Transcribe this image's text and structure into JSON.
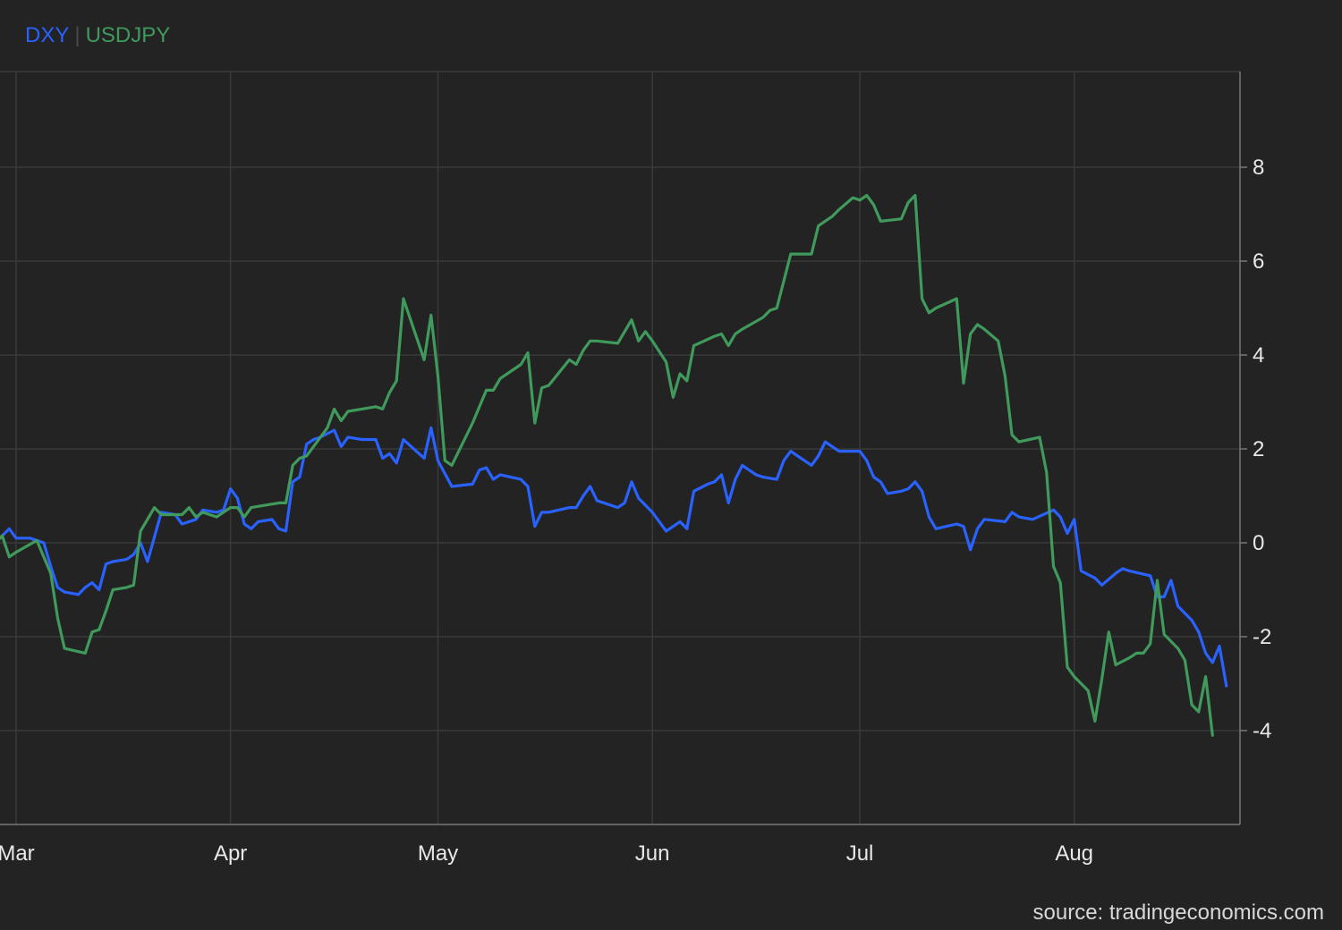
{
  "legend": {
    "items": [
      {
        "label": "DXY",
        "color": "#2962ff"
      },
      {
        "label": "USDJPY",
        "color": "#3f9a5c"
      }
    ]
  },
  "source": "source: tradingeconomics.com",
  "chart_data": {
    "type": "line",
    "title": "",
    "xlabel": "",
    "ylabel": "",
    "y_axis_position": "right",
    "ylim": [
      -6,
      10
    ],
    "yticks": [
      8,
      6,
      4,
      2,
      0,
      -2,
      -4
    ],
    "xlim": [
      0,
      177
    ],
    "xticks": [
      {
        "label": "Mar",
        "x": 3
      },
      {
        "label": "Apr",
        "x": 34
      },
      {
        "label": "May",
        "x": 64
      },
      {
        "label": "Jun",
        "x": 95
      },
      {
        "label": "Jul",
        "x": 125
      },
      {
        "label": "Aug",
        "x": 156
      }
    ],
    "grid": true,
    "legend_placement": "top-left",
    "series": [
      {
        "name": "DXY",
        "color": "#2962ff",
        "points": [
          [
            0,
            0.0
          ],
          [
            2,
            0.3
          ],
          [
            3,
            0.1
          ],
          [
            5,
            0.1
          ],
          [
            7,
            0.0
          ],
          [
            8,
            -0.5
          ],
          [
            9,
            -0.95
          ],
          [
            10,
            -1.05
          ],
          [
            12,
            -1.1
          ],
          [
            13,
            -0.95
          ],
          [
            14,
            -0.85
          ],
          [
            15,
            -1.0
          ],
          [
            16,
            -0.45
          ],
          [
            17,
            -0.4
          ],
          [
            19,
            -0.35
          ],
          [
            20,
            -0.25
          ],
          [
            21,
            0.0
          ],
          [
            22,
            -0.4
          ],
          [
            24,
            0.65
          ],
          [
            26,
            0.6
          ],
          [
            27,
            0.4
          ],
          [
            29,
            0.5
          ],
          [
            30,
            0.7
          ],
          [
            32,
            0.65
          ],
          [
            33,
            0.7
          ],
          [
            34,
            1.15
          ],
          [
            35,
            0.95
          ],
          [
            36,
            0.4
          ],
          [
            37,
            0.3
          ],
          [
            38,
            0.45
          ],
          [
            40,
            0.5
          ],
          [
            41,
            0.3
          ],
          [
            42,
            0.25
          ],
          [
            43,
            1.3
          ],
          [
            44,
            1.4
          ],
          [
            45,
            2.1
          ],
          [
            46,
            2.2
          ],
          [
            47,
            2.25
          ],
          [
            49,
            2.4
          ],
          [
            50,
            2.05
          ],
          [
            51,
            2.25
          ],
          [
            53,
            2.2
          ],
          [
            55,
            2.2
          ],
          [
            56,
            1.8
          ],
          [
            57,
            1.9
          ],
          [
            58,
            1.7
          ],
          [
            59,
            2.2
          ],
          [
            62,
            1.8
          ],
          [
            63,
            2.45
          ],
          [
            64,
            1.75
          ],
          [
            66,
            1.2
          ],
          [
            69,
            1.25
          ],
          [
            70,
            1.55
          ],
          [
            71,
            1.6
          ],
          [
            72,
            1.35
          ],
          [
            73,
            1.45
          ],
          [
            76,
            1.35
          ],
          [
            77,
            1.2
          ],
          [
            78,
            0.35
          ],
          [
            79,
            0.65
          ],
          [
            80,
            0.65
          ],
          [
            83,
            0.75
          ],
          [
            84,
            0.75
          ],
          [
            85,
            1.0
          ],
          [
            86,
            1.2
          ],
          [
            87,
            0.9
          ],
          [
            90,
            0.75
          ],
          [
            91,
            0.85
          ],
          [
            92,
            1.3
          ],
          [
            93,
            0.95
          ],
          [
            95,
            0.65
          ],
          [
            97,
            0.25
          ],
          [
            99,
            0.45
          ],
          [
            100,
            0.3
          ],
          [
            101,
            1.1
          ],
          [
            103,
            1.25
          ],
          [
            104,
            1.3
          ],
          [
            105,
            1.45
          ],
          [
            106,
            0.85
          ],
          [
            107,
            1.35
          ],
          [
            108,
            1.65
          ],
          [
            110,
            1.45
          ],
          [
            111,
            1.4
          ],
          [
            113,
            1.35
          ],
          [
            114,
            1.75
          ],
          [
            115,
            1.95
          ],
          [
            117,
            1.75
          ],
          [
            118,
            1.65
          ],
          [
            119,
            1.85
          ],
          [
            120,
            2.15
          ],
          [
            121,
            2.05
          ],
          [
            122,
            1.95
          ],
          [
            124,
            1.95
          ],
          [
            125,
            1.95
          ],
          [
            126,
            1.75
          ],
          [
            127,
            1.4
          ],
          [
            128,
            1.3
          ],
          [
            129,
            1.05
          ],
          [
            131,
            1.1
          ],
          [
            132,
            1.15
          ],
          [
            133,
            1.3
          ],
          [
            134,
            1.1
          ],
          [
            135,
            0.55
          ],
          [
            136,
            0.3
          ],
          [
            139,
            0.4
          ],
          [
            140,
            0.35
          ],
          [
            141,
            -0.15
          ],
          [
            142,
            0.3
          ],
          [
            143,
            0.5
          ],
          [
            146,
            0.45
          ],
          [
            147,
            0.65
          ],
          [
            148,
            0.55
          ],
          [
            150,
            0.5
          ],
          [
            153,
            0.7
          ],
          [
            154,
            0.55
          ],
          [
            155,
            0.2
          ],
          [
            156,
            0.5
          ],
          [
            157,
            -0.6
          ],
          [
            159,
            -0.75
          ],
          [
            160,
            -0.9
          ],
          [
            162,
            -0.65
          ],
          [
            163,
            -0.55
          ],
          [
            164,
            -0.6
          ],
          [
            167,
            -0.7
          ],
          [
            168,
            -1.15
          ],
          [
            169,
            -1.15
          ],
          [
            170,
            -0.8
          ],
          [
            171,
            -1.35
          ],
          [
            173,
            -1.65
          ],
          [
            174,
            -1.9
          ],
          [
            175,
            -2.35
          ],
          [
            176,
            -2.55
          ],
          [
            177,
            -2.2
          ],
          [
            178,
            -3.05
          ]
        ]
      },
      {
        "name": "USDJPY",
        "color": "#3f9a5c",
        "points": [
          [
            0,
            0.0
          ],
          [
            1,
            0.15
          ],
          [
            2,
            -0.3
          ],
          [
            3,
            -0.2
          ],
          [
            6,
            0.05
          ],
          [
            7,
            -0.3
          ],
          [
            8,
            -0.65
          ],
          [
            9,
            -1.6
          ],
          [
            10,
            -2.25
          ],
          [
            13,
            -2.35
          ],
          [
            14,
            -1.9
          ],
          [
            15,
            -1.85
          ],
          [
            16,
            -1.45
          ],
          [
            17,
            -1.0
          ],
          [
            19,
            -0.95
          ],
          [
            20,
            -0.9
          ],
          [
            21,
            0.25
          ],
          [
            23,
            0.75
          ],
          [
            24,
            0.6
          ],
          [
            27,
            0.6
          ],
          [
            28,
            0.75
          ],
          [
            29,
            0.55
          ],
          [
            30,
            0.65
          ],
          [
            31,
            0.6
          ],
          [
            32,
            0.55
          ],
          [
            34,
            0.75
          ],
          [
            35,
            0.75
          ],
          [
            36,
            0.55
          ],
          [
            37,
            0.75
          ],
          [
            41,
            0.85
          ],
          [
            42,
            0.85
          ],
          [
            43,
            1.65
          ],
          [
            44,
            1.8
          ],
          [
            45,
            1.85
          ],
          [
            48,
            2.45
          ],
          [
            49,
            2.85
          ],
          [
            50,
            2.6
          ],
          [
            51,
            2.8
          ],
          [
            53,
            2.85
          ],
          [
            55,
            2.9
          ],
          [
            56,
            2.85
          ],
          [
            57,
            3.2
          ],
          [
            58,
            3.45
          ],
          [
            59,
            5.2
          ],
          [
            62,
            3.9
          ],
          [
            63,
            4.85
          ],
          [
            64,
            3.55
          ],
          [
            65,
            1.75
          ],
          [
            66,
            1.65
          ],
          [
            69,
            2.55
          ],
          [
            71,
            3.25
          ],
          [
            72,
            3.25
          ],
          [
            73,
            3.5
          ],
          [
            76,
            3.8
          ],
          [
            77,
            4.05
          ],
          [
            78,
            2.55
          ],
          [
            79,
            3.3
          ],
          [
            80,
            3.35
          ],
          [
            83,
            3.9
          ],
          [
            84,
            3.8
          ],
          [
            85,
            4.1
          ],
          [
            86,
            4.3
          ],
          [
            87,
            4.3
          ],
          [
            90,
            4.25
          ],
          [
            91,
            4.5
          ],
          [
            92,
            4.75
          ],
          [
            93,
            4.3
          ],
          [
            94,
            4.5
          ],
          [
            95,
            4.3
          ],
          [
            97,
            3.85
          ],
          [
            98,
            3.1
          ],
          [
            99,
            3.6
          ],
          [
            100,
            3.45
          ],
          [
            101,
            4.2
          ],
          [
            104,
            4.4
          ],
          [
            105,
            4.45
          ],
          [
            106,
            4.2
          ],
          [
            107,
            4.45
          ],
          [
            108,
            4.55
          ],
          [
            111,
            4.8
          ],
          [
            112,
            4.95
          ],
          [
            113,
            5.0
          ],
          [
            115,
            6.15
          ],
          [
            118,
            6.15
          ],
          [
            119,
            6.75
          ],
          [
            121,
            6.95
          ],
          [
            122,
            7.1
          ],
          [
            124,
            7.35
          ],
          [
            125,
            7.3
          ],
          [
            126,
            7.4
          ],
          [
            127,
            7.2
          ],
          [
            128,
            6.85
          ],
          [
            131,
            6.9
          ],
          [
            132,
            7.25
          ],
          [
            133,
            7.4
          ],
          [
            134,
            5.2
          ],
          [
            135,
            4.9
          ],
          [
            136,
            5.0
          ],
          [
            139,
            5.2
          ],
          [
            140,
            3.4
          ],
          [
            141,
            4.45
          ],
          [
            142,
            4.65
          ],
          [
            143,
            4.55
          ],
          [
            145,
            4.3
          ],
          [
            146,
            3.55
          ],
          [
            147,
            2.3
          ],
          [
            148,
            2.15
          ],
          [
            151,
            2.25
          ],
          [
            152,
            1.5
          ],
          [
            153,
            -0.5
          ],
          [
            154,
            -0.85
          ],
          [
            155,
            -2.65
          ],
          [
            156,
            -2.85
          ],
          [
            158,
            -3.15
          ],
          [
            159,
            -3.8
          ],
          [
            160,
            -2.9
          ],
          [
            161,
            -1.9
          ],
          [
            162,
            -2.6
          ],
          [
            164,
            -2.45
          ],
          [
            165,
            -2.35
          ],
          [
            166,
            -2.35
          ],
          [
            167,
            -2.15
          ],
          [
            168,
            -0.8
          ],
          [
            169,
            -1.95
          ],
          [
            171,
            -2.25
          ],
          [
            172,
            -2.5
          ],
          [
            173,
            -3.45
          ],
          [
            174,
            -3.6
          ],
          [
            175,
            -2.85
          ],
          [
            176,
            -4.1
          ]
        ]
      }
    ]
  }
}
